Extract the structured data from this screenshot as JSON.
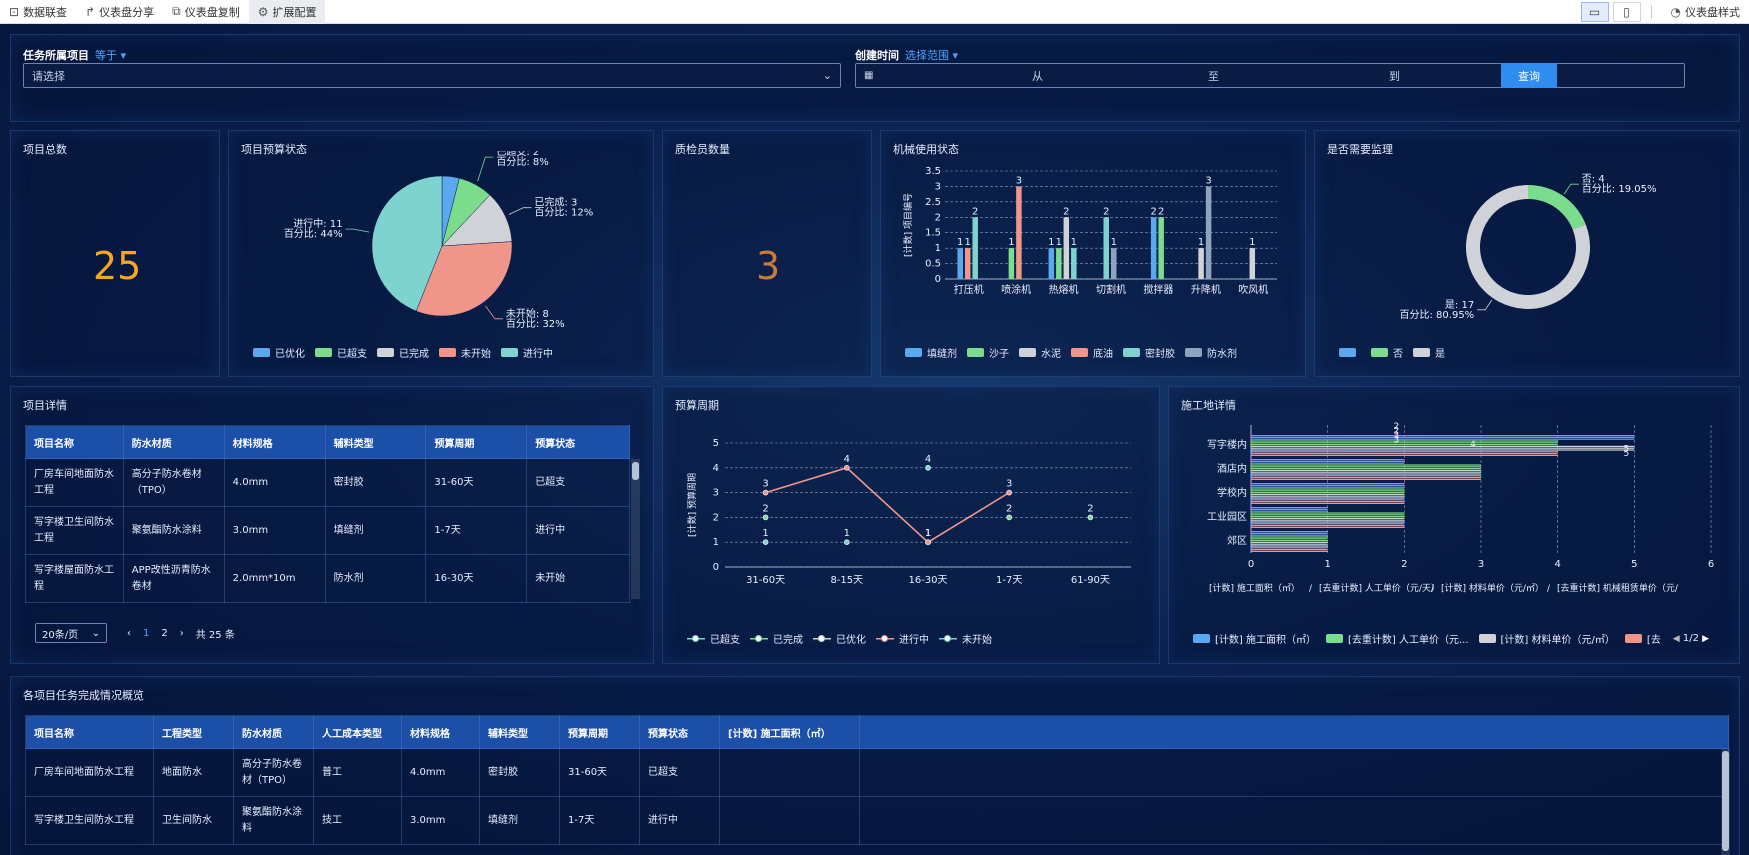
{
  "toolbar": {
    "left": [
      {
        "icon": "data-link-icon",
        "glyph": "⊡",
        "label": "数据联查"
      },
      {
        "icon": "share-icon",
        "glyph": "↱",
        "label": "仪表盘分享"
      },
      {
        "icon": "copy-icon",
        "glyph": "⧉",
        "label": "仪表盘复制"
      },
      {
        "icon": "gear-icon",
        "glyph": "⚙",
        "label": "扩展配置"
      }
    ],
    "device_desktop": "▭",
    "device_mobile": "▯",
    "style_label": "仪表盘样式"
  },
  "filter": {
    "project_label": "任务所属项目",
    "project_op": "等于",
    "project_placeholder": "请选择",
    "time_label": "创建时间",
    "time_op": "选择范围",
    "from": "从",
    "to": "至",
    "until": "到",
    "query_button": "查询"
  },
  "kpi": {
    "total_title": "项目总数",
    "total_value": "25",
    "inspector_title": "质检员数量",
    "inspector_value": "3"
  },
  "pie_titles": {
    "budget": "项目预算状态",
    "machine": "机械使用状态",
    "supervise": "是否需要监理"
  },
  "table_titles": {
    "detail": "项目详情",
    "cycle": "预算周期",
    "site": "施工地详情",
    "overview": "各项目任务完成情况概览"
  },
  "colors": {
    "blue": "#5aa9ee",
    "green": "#7cdc8e",
    "gray": "#cfd2d6",
    "salmon": "#f0958a",
    "teal": "#7fd3ce",
    "slate": "#8fa3bc"
  },
  "chart_data": [
    {
      "type": "pie",
      "title": "项目预算状态",
      "categories": [
        "已优化",
        "已超支",
        "已完成",
        "未开始",
        "进行中"
      ],
      "values": [
        1,
        2,
        3,
        8,
        11
      ],
      "labels": [
        {
          "name": "已超支",
          "value": "已超支: 2",
          "pct": "百分比: 8%"
        },
        {
          "name": "已完成",
          "value": "已完成: 3",
          "pct": "百分比: 12%"
        },
        {
          "name": "未开始",
          "value": "未开始: 8",
          "pct": "百分比: 32%"
        },
        {
          "name": "进行中",
          "value": "进行中: 11",
          "pct": "百分比: 44%"
        }
      ],
      "legend": "bottom"
    },
    {
      "type": "bar",
      "title": "机械使用状态",
      "ylabel": "[计数] 项目编号",
      "ylim": [
        0,
        3.5
      ],
      "yticks": [
        "0",
        "0.5",
        "1",
        "1.5",
        "2",
        "2.5",
        "3",
        "3.5"
      ],
      "categories": [
        "打压机",
        "喷涂机",
        "热熔机",
        "切割机",
        "搅拌器",
        "升降机",
        "吹风机"
      ],
      "series": [
        {
          "name": "填缝剂",
          "values": [
            1,
            0,
            1,
            0,
            2,
            0,
            0
          ]
        },
        {
          "name": "沙子",
          "values": [
            0,
            1,
            1,
            0,
            2,
            0,
            0
          ]
        },
        {
          "name": "水泥",
          "values": [
            0,
            0,
            2,
            0,
            0,
            1,
            1
          ]
        },
        {
          "name": "底油",
          "values": [
            1,
            3,
            0,
            0,
            0,
            0,
            0
          ]
        },
        {
          "name": "密封胶",
          "values": [
            2,
            0,
            1,
            2,
            0,
            0,
            0
          ]
        },
        {
          "name": "防水剂",
          "values": [
            0,
            0,
            0,
            1,
            0,
            3,
            0
          ]
        }
      ],
      "legend": "bottom"
    },
    {
      "type": "pie",
      "title": "是否需要监理",
      "categories": [
        "",
        "否",
        "是"
      ],
      "values": [
        0,
        4,
        17
      ],
      "labels": [
        {
          "name": "否",
          "value": "否: 4",
          "pct": "百分比: 19.05%"
        },
        {
          "name": "是",
          "value": "是: 17",
          "pct": "百分比: 80.95%"
        }
      ],
      "legend": "bottom"
    },
    {
      "type": "line",
      "title": "预算周期",
      "ylabel": "[计数] 预算周期",
      "ylim": [
        0,
        5
      ],
      "yticks": [
        "0",
        "1",
        "2",
        "3",
        "4",
        "5"
      ],
      "categories": [
        "31-60天",
        "8-15天",
        "16-30天",
        "1-7天",
        "61-90天"
      ],
      "series": [
        {
          "name": "已超支",
          "values": [
            1,
            1,
            null,
            null,
            null
          ]
        },
        {
          "name": "已完成",
          "values": [
            2,
            null,
            null,
            2,
            2
          ]
        },
        {
          "name": "已优化",
          "values": [
            null,
            null,
            1,
            null,
            null
          ]
        },
        {
          "name": "进行中",
          "values": [
            3,
            4,
            1,
            3,
            null
          ]
        },
        {
          "name": "未开始",
          "values": [
            null,
            null,
            4,
            null,
            null
          ]
        }
      ],
      "legend": "bottom"
    },
    {
      "type": "bar",
      "title": "施工地详情",
      "orientation": "horizontal",
      "categories": [
        "郊区",
        "工业园区",
        "学校内",
        "酒店内",
        "写字楼内"
      ],
      "xlim": [
        0,
        6
      ],
      "xticks": [
        "0",
        "1",
        "2",
        "3",
        "4",
        "5",
        "6"
      ],
      "series": [
        {
          "name": "[计数] 施工面积（㎡）",
          "values": [
            1,
            1,
            2,
            2,
            5
          ]
        },
        {
          "name": "[去重计数] 人工单价（元/天）",
          "values": [
            1,
            2,
            2,
            3,
            4
          ]
        },
        {
          "name": "[计数] 材料单价（元/㎡）",
          "values": [
            1,
            2,
            2,
            3,
            5
          ]
        },
        {
          "name": "[去重计数] 机械租赁单价（元/",
          "values": [
            1,
            2,
            2,
            3,
            4
          ]
        }
      ],
      "point_labels": [
        "2",
        "2",
        "3",
        "3",
        "4",
        "5",
        "5"
      ],
      "axis_note": [
        "[计数] 施工面积（㎡）",
        "[去重计数] 人工单价（元/天）",
        "[计数] 材料单价（元/㎡）",
        "[去重计数] 机械租赁单价（元/"
      ],
      "legend_items": [
        "[计数] 施工面积（㎡）",
        "[去重计数] 人工单价（元...",
        "[计数] 材料单价（元/㎡）",
        "[去"
      ],
      "legend_page": "1/2"
    }
  ],
  "detail_table": {
    "headers": [
      "项目名称",
      "防水材质",
      "材料规格",
      "辅料类型",
      "预算周期",
      "预算状态"
    ],
    "rows": [
      [
        "厂房车间地面防水工程",
        "高分子防水卷材（TPO）",
        "4.0mm",
        "密封胶",
        "31-60天",
        "已超支"
      ],
      [
        "写字楼卫生间防水工程",
        "聚氨酯防水涂料",
        "3.0mm",
        "填缝剂",
        "1-7天",
        "进行中"
      ],
      [
        "写字楼屋面防水工程",
        "APP改性沥青防水卷材",
        "2.0mm*10m",
        "防水剂",
        "16-30天",
        "未开始"
      ]
    ],
    "page_size": "20条/页",
    "page1": "1",
    "page2": "2",
    "total": "共 25 条"
  },
  "overview_table": {
    "headers": [
      "项目名称",
      "工程类型",
      "防水材质",
      "人工成本类型",
      "材料规格",
      "辅料类型",
      "预算周期",
      "预算状态",
      "[计数] 施工面积（㎡）"
    ],
    "rows": [
      [
        "厂房车间地面防水工程",
        "地面防水",
        "高分子防水卷材（TPO）",
        "普工",
        "4.0mm",
        "密封胶",
        "31-60天",
        "已超支",
        ""
      ],
      [
        "写字楼卫生间防水工程",
        "卫生间防水",
        "聚氨酯防水涂料",
        "技工",
        "3.0mm",
        "填缝剂",
        "1-7天",
        "进行中",
        ""
      ]
    ]
  }
}
